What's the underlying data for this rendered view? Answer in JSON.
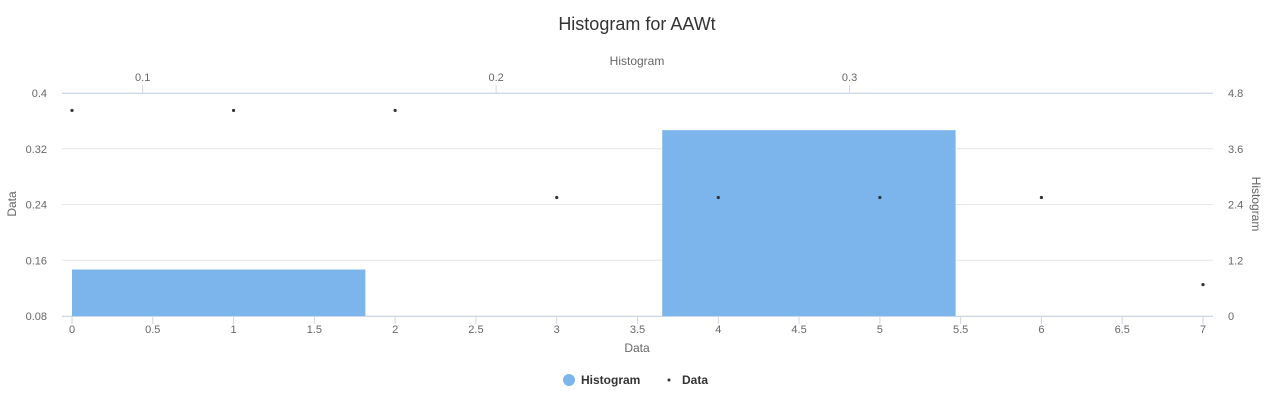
{
  "chart_data": {
    "type": "bar",
    "title": "Histogram for AAWt",
    "xlabel": "Data",
    "ylabel": "Data",
    "y2label": "Histogram",
    "x2label": "Histogram",
    "xlim": [
      0,
      7
    ],
    "ylim": [
      0.08,
      0.4
    ],
    "y2lim": [
      0,
      4.8
    ],
    "x2lim": [
      0.08,
      0.4
    ],
    "x_ticks": [
      "0",
      "0.5",
      "1",
      "1.5",
      "2",
      "2.5",
      "3",
      "3.5",
      "4",
      "4.5",
      "5",
      "5.5",
      "6",
      "6.5",
      "7"
    ],
    "y_ticks": [
      "0.08",
      "0.16",
      "0.24",
      "0.32",
      "0.4"
    ],
    "y2_ticks": [
      "0",
      "1.2",
      "2.4",
      "3.6",
      "4.8"
    ],
    "x2_ticks": [
      "0.1",
      "0.2",
      "0.3"
    ],
    "grid": true,
    "legend_position": "bottom-center",
    "series": [
      {
        "name": "Histogram",
        "kind": "histogram",
        "color": "#7cb5ec",
        "bins": [
          {
            "x0": 0.08,
            "x1": 0.163,
            "count": 1
          },
          {
            "x0": 0.163,
            "x1": 0.247,
            "count": 0
          },
          {
            "x0": 0.247,
            "x1": 0.33,
            "count": 4
          }
        ]
      },
      {
        "name": "Data",
        "kind": "scatter",
        "color": "#333333",
        "points": [
          {
            "x": 0,
            "y": 0.375
          },
          {
            "x": 1,
            "y": 0.375
          },
          {
            "x": 2,
            "y": 0.375
          },
          {
            "x": 3,
            "y": 0.25
          },
          {
            "x": 4,
            "y": 0.25
          },
          {
            "x": 5,
            "y": 0.25
          },
          {
            "x": 6,
            "y": 0.25
          },
          {
            "x": 7,
            "y": 0.125
          }
        ]
      }
    ]
  }
}
